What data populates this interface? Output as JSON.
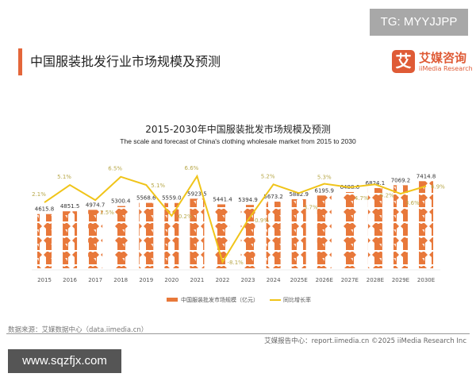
{
  "watermark_top": "TG: MYYJJPP",
  "watermark_bottom": "www.sqzfjx.com",
  "page_title": "中国服装批发行业市场规模及预测",
  "logo": {
    "mark": "艾",
    "cn": "艾媒咨询",
    "en": "iiMedia Research",
    "color": "#df5b36"
  },
  "source": "数据来源：艾媒数据中心（data.iimedia.cn）",
  "footer": "艾媒报告中心：report.iimedia.cn    ©2025  iiMedia Research  Inc",
  "chart_data": {
    "type": "bar",
    "title": "2015-2030年中国服装批发市场规模及预测",
    "subtitle": "The scale and forecast of China's clothing wholesale market from 2015 to 2030",
    "categories": [
      "2015",
      "2016",
      "2017",
      "2018",
      "2019",
      "2020",
      "2021",
      "2022",
      "2023",
      "2024",
      "2025E",
      "2026E",
      "2027E",
      "2028E",
      "2029E",
      "2030E"
    ],
    "series": [
      {
        "name": "中国服装批发市场规模（亿元）",
        "type": "bar",
        "color": "#e8783a",
        "values": [
          4615.8,
          4851.5,
          4974.7,
          5300.4,
          5568.6,
          5559.0,
          5923.5,
          5441.4,
          5394.9,
          5673.2,
          5882.9,
          6195.9,
          6488.6,
          6824.1,
          7069.2,
          7414.8
        ],
        "labels": [
          "4615.8",
          "4851.5",
          "4974.7",
          "5300.4",
          "5568.6",
          "5559.0",
          "5923.5",
          "5441.4",
          "5394.9",
          "5673.2",
          "5882.9",
          "6195.9",
          "6488.6",
          "6824.1",
          "7069.2",
          "7414.8"
        ]
      },
      {
        "name": "同比增长率",
        "type": "line",
        "color": "#f0c419",
        "values": [
          2.1,
          5.1,
          2.5,
          6.5,
          5.1,
          -0.2,
          6.6,
          -8.1,
          -0.9,
          5.2,
          3.7,
          5.3,
          4.7,
          5.2,
          3.6,
          4.9
        ],
        "labels": [
          "2.1%",
          "5.1%",
          "2.5%",
          "6.5%",
          "5.1%",
          "-0.2%",
          "6.6%",
          "-8.1%",
          "-0.9%",
          "5.2%",
          "3.7%",
          "5.3%",
          "4.7%",
          "5.2%",
          "3.6%",
          "4.9%"
        ]
      }
    ],
    "legend": "bottom",
    "grid": false,
    "bar_style": "pictogram-shirts"
  }
}
